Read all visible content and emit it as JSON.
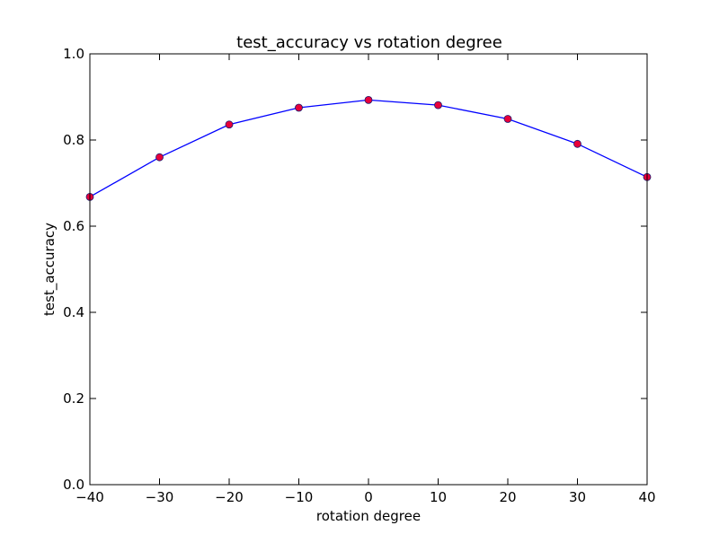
{
  "chart_data": {
    "type": "line",
    "title": "test_accuracy vs rotation degree",
    "xlabel": "rotation degree",
    "ylabel": "test_accuracy",
    "xlim": [
      -40,
      40
    ],
    "ylim": [
      0.0,
      1.0
    ],
    "x_ticks": [
      -40,
      -30,
      -20,
      -10,
      0,
      10,
      20,
      30,
      40
    ],
    "x_tick_labels": [
      "−40",
      "−30",
      "−20",
      "−10",
      "0",
      "10",
      "20",
      "30",
      "40"
    ],
    "y_ticks": [
      0.0,
      0.2,
      0.4,
      0.6,
      0.8,
      1.0
    ],
    "y_tick_labels": [
      "0.0",
      "0.2",
      "0.4",
      "0.6",
      "0.8",
      "1.0"
    ],
    "grid": false,
    "series": [
      {
        "x": [
          -40,
          -30,
          -20,
          -10,
          0,
          10,
          20,
          30,
          40
        ],
        "values": [
          0.668,
          0.76,
          0.836,
          0.875,
          0.893,
          0.881,
          0.849,
          0.791,
          0.714
        ],
        "line_color": "#0000ff",
        "marker_color": "#e8003a",
        "marker": "circle"
      }
    ]
  }
}
